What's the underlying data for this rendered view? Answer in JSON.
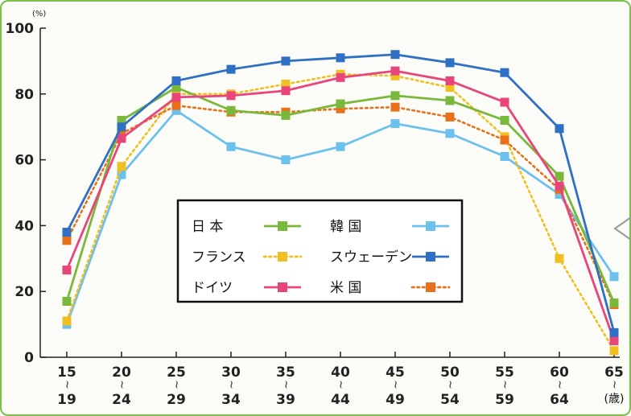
{
  "chart_data": {
    "type": "line",
    "ylabel_unit": "(%)",
    "ylim": [
      0,
      100
    ],
    "yticks": [
      0,
      20,
      40,
      60,
      80,
      100
    ],
    "x_separator": "〜",
    "x_unit": "(歳)",
    "categories": [
      {
        "top": "15",
        "bottom": "19"
      },
      {
        "top": "20",
        "bottom": "24"
      },
      {
        "top": "25",
        "bottom": "29"
      },
      {
        "top": "30",
        "bottom": "34"
      },
      {
        "top": "35",
        "bottom": "39"
      },
      {
        "top": "40",
        "bottom": "44"
      },
      {
        "top": "45",
        "bottom": "49"
      },
      {
        "top": "50",
        "bottom": "54"
      },
      {
        "top": "55",
        "bottom": "59"
      },
      {
        "top": "60",
        "bottom": "64"
      },
      {
        "top": "65",
        "bottom": ""
      }
    ],
    "series": [
      {
        "name": "日 本",
        "color": "#7ab83b",
        "style": "solid",
        "values": [
          17,
          72,
          82,
          75,
          73.5,
          77,
          79.5,
          78,
          72,
          55,
          16.5
        ]
      },
      {
        "name": "フランス",
        "color": "#f0c020",
        "style": "dotted",
        "values": [
          11,
          58,
          80,
          80,
          83,
          86,
          85.5,
          82,
          67,
          30,
          2
        ]
      },
      {
        "name": "ドイツ",
        "color": "#e8457a",
        "style": "solid",
        "values": [
          26.5,
          66.5,
          79,
          79.5,
          81,
          85,
          87,
          84,
          77.5,
          52,
          5
        ]
      },
      {
        "name": "韓 国",
        "color": "#6cc0ec",
        "style": "solid",
        "values": [
          10,
          55.5,
          75,
          64,
          60,
          64,
          71,
          68,
          61,
          49.5,
          24.5
        ]
      },
      {
        "name": "スウェーデン",
        "color": "#2f6fc4",
        "style": "solid",
        "values": [
          38,
          70,
          84,
          87.5,
          90,
          91,
          92,
          89.5,
          86.5,
          69.5,
          7.5
        ]
      },
      {
        "name": "米 国",
        "color": "#e8701a",
        "style": "dotted",
        "values": [
          35.5,
          68,
          76.5,
          74.5,
          74.5,
          75.5,
          76,
          73,
          66,
          51,
          16
        ]
      }
    ],
    "legend": {
      "placement": "center-left",
      "columns": 2
    }
  }
}
